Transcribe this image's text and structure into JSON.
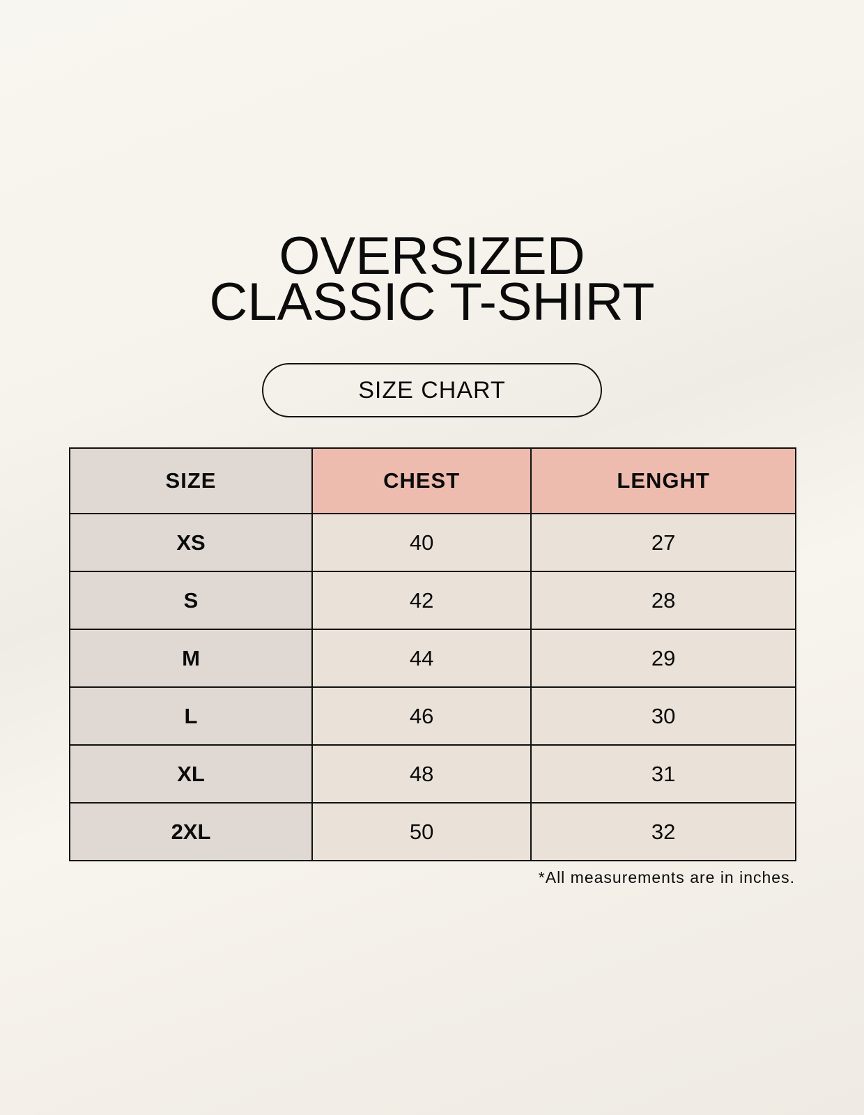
{
  "title_lines": [
    "OVERSIZED",
    "CLASSIC T-SHIRT"
  ],
  "subtitle": "SIZE CHART",
  "table": {
    "headers": [
      "SIZE",
      "CHEST",
      "LENGHT"
    ],
    "rows": [
      [
        "XS",
        "40",
        "27"
      ],
      [
        "S",
        "42",
        "28"
      ],
      [
        "M",
        "44",
        "29"
      ],
      [
        "L",
        "46",
        "30"
      ],
      [
        "XL",
        "48",
        "31"
      ],
      [
        "2XL",
        "50",
        "32"
      ]
    ]
  },
  "footnote": "*All measurements are in inches.",
  "colors": {
    "size_column": "#e0d9d3",
    "header_accent": "#edbcaf",
    "cell": "#eae2d8"
  }
}
